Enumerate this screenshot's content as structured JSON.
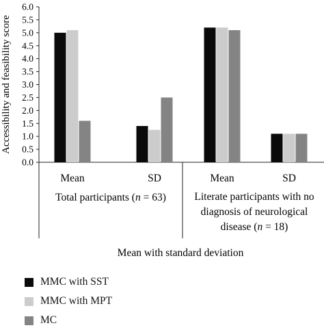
{
  "chart_data": {
    "type": "bar",
    "ylabel": "Accessibility and feasibility score",
    "xlabel": "Mean with standard deviation",
    "ylim": [
      0,
      6
    ],
    "y_ticks": [
      "0.0",
      "0.5",
      "1.0",
      "1.5",
      "2.0",
      "2.5",
      "3.0",
      "3.5",
      "4.0",
      "4.5",
      "5.0",
      "5.5",
      "6.0"
    ],
    "groups": [
      {
        "label_lines": [
          "Total participants (n = 63)"
        ],
        "categories": [
          "Mean",
          "SD"
        ]
      },
      {
        "label_lines": [
          "Literate participants with no",
          "diagnosis of neurological",
          "disease (n = 18)"
        ],
        "categories": [
          "Mean",
          "SD"
        ]
      }
    ],
    "categories": [
      "Mean",
      "SD",
      "Mean",
      "SD"
    ],
    "series": [
      {
        "name": "MMC with SST",
        "color": "#0a0a0a",
        "values": [
          5.0,
          1.4,
          5.2,
          1.1
        ]
      },
      {
        "name": "MMC with MPT",
        "color": "#cccccc",
        "values": [
          5.1,
          1.25,
          5.2,
          1.1
        ]
      },
      {
        "name": "MC",
        "color": "#848484",
        "values": [
          1.6,
          2.5,
          5.1,
          1.1
        ]
      }
    ],
    "legend_position": "bottom-left",
    "grid": false
  }
}
